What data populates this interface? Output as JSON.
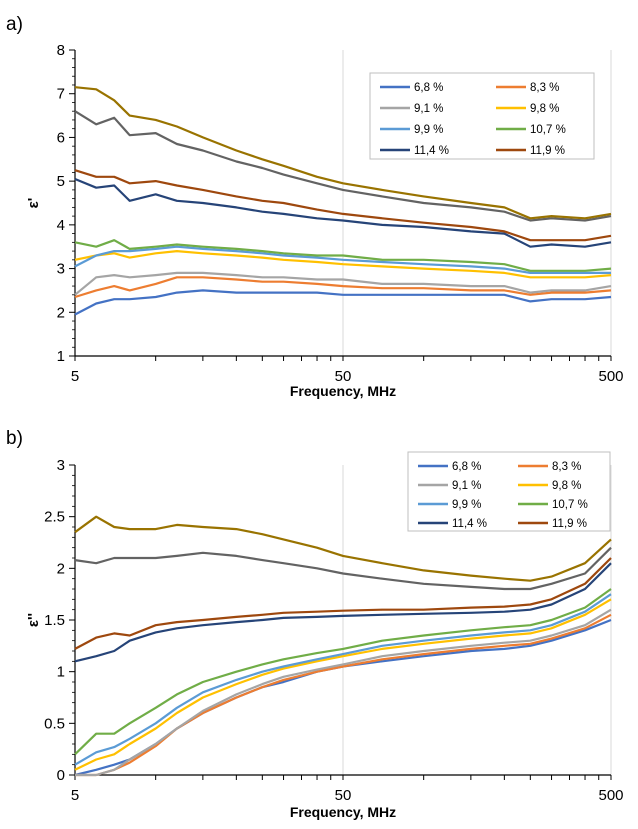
{
  "chart_data": [
    {
      "type": "line",
      "panel_label": "a)",
      "xlabel": "Frequency, MHz",
      "ylabel": "ε'",
      "x_scale": "log",
      "xlim": [
        5,
        500
      ],
      "x_ticks": [
        "5",
        "50",
        "500"
      ],
      "ylim": [
        1,
        8
      ],
      "y_ticks": [
        "1",
        "2",
        "3",
        "4",
        "5",
        "6",
        "7",
        "8"
      ],
      "grid": true,
      "legend_placement": "top-right",
      "x": [
        5,
        6,
        7,
        8,
        10,
        12,
        15,
        20,
        25,
        30,
        40,
        50,
        70,
        100,
        150,
        200,
        250,
        300,
        400,
        500
      ],
      "series": [
        {
          "name": "6,8 %",
          "color": "#4472C4",
          "values": [
            1.95,
            2.2,
            2.3,
            2.3,
            2.35,
            2.45,
            2.5,
            2.45,
            2.45,
            2.45,
            2.45,
            2.4,
            2.4,
            2.4,
            2.4,
            2.4,
            2.25,
            2.3,
            2.3,
            2.35
          ]
        },
        {
          "name": "8,3 %",
          "color": "#ED7D31",
          "values": [
            2.35,
            2.5,
            2.6,
            2.5,
            2.65,
            2.8,
            2.8,
            2.75,
            2.7,
            2.7,
            2.65,
            2.6,
            2.55,
            2.55,
            2.5,
            2.5,
            2.4,
            2.45,
            2.45,
            2.5
          ]
        },
        {
          "name": "9,1 %",
          "color": "#A5A5A5",
          "values": [
            2.4,
            2.8,
            2.85,
            2.8,
            2.85,
            2.9,
            2.9,
            2.85,
            2.8,
            2.8,
            2.75,
            2.75,
            2.65,
            2.65,
            2.6,
            2.6,
            2.45,
            2.5,
            2.5,
            2.6
          ]
        },
        {
          "name": "9,8 %",
          "color": "#FFC000",
          "values": [
            3.2,
            3.3,
            3.35,
            3.25,
            3.35,
            3.4,
            3.35,
            3.3,
            3.25,
            3.2,
            3.15,
            3.1,
            3.05,
            3.0,
            2.95,
            2.9,
            2.8,
            2.8,
            2.8,
            2.85
          ]
        },
        {
          "name": "9,9 %",
          "color": "#5B9BD5",
          "values": [
            3.05,
            3.3,
            3.4,
            3.4,
            3.45,
            3.5,
            3.45,
            3.4,
            3.35,
            3.3,
            3.25,
            3.2,
            3.15,
            3.1,
            3.05,
            3.0,
            2.9,
            2.9,
            2.9,
            2.9
          ]
        },
        {
          "name": "10,7 %",
          "color": "#70AD47",
          "values": [
            3.6,
            3.5,
            3.65,
            3.45,
            3.5,
            3.55,
            3.5,
            3.45,
            3.4,
            3.35,
            3.3,
            3.3,
            3.2,
            3.2,
            3.15,
            3.1,
            2.95,
            2.95,
            2.95,
            3.0
          ]
        },
        {
          "name": "11,4 %",
          "color": "#264478",
          "values": [
            5.05,
            4.85,
            4.9,
            4.55,
            4.7,
            4.55,
            4.5,
            4.4,
            4.3,
            4.25,
            4.15,
            4.1,
            4.0,
            3.95,
            3.85,
            3.8,
            3.5,
            3.55,
            3.5,
            3.6
          ]
        },
        {
          "name": "11,9 %",
          "color": "#9E480E",
          "values": [
            5.25,
            5.1,
            5.1,
            4.95,
            5.0,
            4.9,
            4.8,
            4.65,
            4.55,
            4.5,
            4.35,
            4.25,
            4.15,
            4.05,
            3.95,
            3.85,
            3.65,
            3.65,
            3.65,
            3.75
          ]
        },
        {
          "color": "#636363",
          "values": [
            6.6,
            6.3,
            6.45,
            6.05,
            6.1,
            5.85,
            5.7,
            5.45,
            5.3,
            5.15,
            4.95,
            4.8,
            4.65,
            4.5,
            4.4,
            4.3,
            4.1,
            4.15,
            4.1,
            4.2
          ]
        },
        {
          "color": "#997300",
          "values": [
            7.15,
            7.1,
            6.85,
            6.5,
            6.4,
            6.25,
            6.0,
            5.7,
            5.5,
            5.35,
            5.1,
            4.95,
            4.8,
            4.65,
            4.5,
            4.4,
            4.15,
            4.2,
            4.15,
            4.25
          ]
        }
      ]
    },
    {
      "type": "line",
      "panel_label": "b)",
      "xlabel": "Frequency, MHz",
      "ylabel": "ε''",
      "x_scale": "log",
      "xlim": [
        5,
        500
      ],
      "x_ticks": [
        "5",
        "50",
        "500"
      ],
      "ylim": [
        0,
        3
      ],
      "y_ticks": [
        "0",
        "0.5",
        "1",
        "1.5",
        "2",
        "2.5",
        "3"
      ],
      "grid": true,
      "legend_placement": "top-right",
      "x": [
        5,
        6,
        7,
        8,
        10,
        12,
        15,
        20,
        25,
        30,
        40,
        50,
        70,
        100,
        150,
        200,
        250,
        300,
        400,
        500
      ],
      "series": [
        {
          "name": "6,8 %",
          "color": "#4472C4",
          "values": [
            0.0,
            0.05,
            0.1,
            0.15,
            0.3,
            0.45,
            0.6,
            0.75,
            0.85,
            0.9,
            1.0,
            1.05,
            1.1,
            1.15,
            1.2,
            1.22,
            1.25,
            1.3,
            1.4,
            1.5
          ]
        },
        {
          "name": "8,3 %",
          "color": "#ED7D31",
          "values": [
            0.0,
            0.0,
            0.05,
            0.12,
            0.28,
            0.45,
            0.6,
            0.75,
            0.85,
            0.92,
            1.0,
            1.05,
            1.12,
            1.17,
            1.22,
            1.25,
            1.27,
            1.32,
            1.42,
            1.55
          ]
        },
        {
          "name": "9,1 %",
          "color": "#A5A5A5",
          "values": [
            0.0,
            0.0,
            0.05,
            0.15,
            0.3,
            0.45,
            0.62,
            0.78,
            0.88,
            0.95,
            1.02,
            1.07,
            1.15,
            1.2,
            1.25,
            1.28,
            1.3,
            1.35,
            1.45,
            1.6
          ]
        },
        {
          "name": "9,8 %",
          "color": "#FFC000",
          "values": [
            0.05,
            0.15,
            0.2,
            0.3,
            0.45,
            0.6,
            0.75,
            0.88,
            0.97,
            1.03,
            1.1,
            1.15,
            1.22,
            1.27,
            1.32,
            1.35,
            1.37,
            1.42,
            1.55,
            1.7
          ]
        },
        {
          "name": "9,9 %",
          "color": "#5B9BD5",
          "values": [
            0.1,
            0.22,
            0.27,
            0.35,
            0.5,
            0.65,
            0.8,
            0.92,
            1.0,
            1.05,
            1.12,
            1.17,
            1.25,
            1.3,
            1.35,
            1.38,
            1.4,
            1.45,
            1.58,
            1.75
          ]
        },
        {
          "name": "10,7 %",
          "color": "#70AD47",
          "values": [
            0.2,
            0.4,
            0.4,
            0.5,
            0.65,
            0.78,
            0.9,
            1.0,
            1.07,
            1.12,
            1.18,
            1.22,
            1.3,
            1.35,
            1.4,
            1.43,
            1.45,
            1.5,
            1.62,
            1.8
          ]
        },
        {
          "name": "11,4 %",
          "color": "#264478",
          "values": [
            1.1,
            1.15,
            1.2,
            1.3,
            1.38,
            1.42,
            1.45,
            1.48,
            1.5,
            1.52,
            1.53,
            1.54,
            1.55,
            1.56,
            1.57,
            1.58,
            1.6,
            1.65,
            1.8,
            2.05
          ]
        },
        {
          "name": "11,9 %",
          "color": "#9E480E",
          "values": [
            1.22,
            1.33,
            1.37,
            1.35,
            1.45,
            1.48,
            1.5,
            1.53,
            1.55,
            1.57,
            1.58,
            1.59,
            1.6,
            1.6,
            1.62,
            1.63,
            1.65,
            1.7,
            1.85,
            2.1
          ]
        },
        {
          "color": "#636363",
          "values": [
            2.08,
            2.05,
            2.1,
            2.1,
            2.1,
            2.12,
            2.15,
            2.12,
            2.08,
            2.05,
            2.0,
            1.95,
            1.9,
            1.85,
            1.82,
            1.8,
            1.8,
            1.85,
            1.95,
            2.2
          ]
        },
        {
          "color": "#997300",
          "values": [
            2.35,
            2.5,
            2.4,
            2.38,
            2.38,
            2.42,
            2.4,
            2.38,
            2.33,
            2.28,
            2.2,
            2.12,
            2.05,
            1.98,
            1.93,
            1.9,
            1.88,
            1.92,
            2.05,
            2.28
          ]
        }
      ]
    }
  ]
}
